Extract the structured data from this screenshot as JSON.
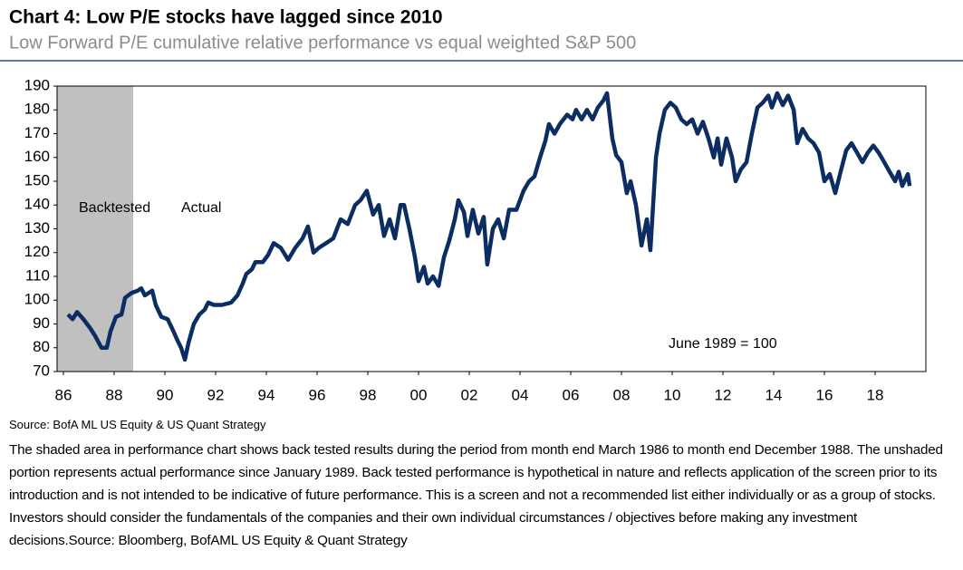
{
  "chart_data": {
    "type": "line",
    "title": "Chart 4: Low P/E stocks have lagged since 2010",
    "subtitle": "Low Forward P/E cumulative relative performance vs equal weighted S&P 500",
    "x": [
      1986.18,
      1986.36,
      1986.54,
      1986.79,
      1987.07,
      1987.25,
      1987.5,
      1987.71,
      1987.86,
      1988.07,
      1988.29,
      1988.43,
      1988.68,
      1988.93,
      1989.07,
      1989.21,
      1989.5,
      1989.64,
      1989.86,
      1990.11,
      1990.29,
      1990.5,
      1990.64,
      1990.79,
      1990.93,
      1991.14,
      1991.36,
      1991.57,
      1991.71,
      1991.93,
      1992.25,
      1992.61,
      1992.86,
      1993.07,
      1993.21,
      1993.43,
      1993.57,
      1993.86,
      1994.07,
      1994.29,
      1994.57,
      1994.86,
      1995.14,
      1995.43,
      1995.64,
      1995.86,
      1996.07,
      1996.36,
      1996.64,
      1996.93,
      1997.21,
      1997.5,
      1997.71,
      1997.96,
      1998.21,
      1998.43,
      1998.64,
      1998.86,
      1999.07,
      1999.29,
      1999.43,
      1999.64,
      1999.86,
      2000,
      2000.21,
      2000.36,
      2000.57,
      2000.79,
      2001,
      2001.21,
      2001.43,
      2001.57,
      2001.79,
      2001.93,
      2002.14,
      2002.36,
      2002.57,
      2002.71,
      2002.93,
      2003.14,
      2003.36,
      2003.57,
      2003.86,
      2004.14,
      2004.36,
      2004.57,
      2004.79,
      2005,
      2005.14,
      2005.36,
      2005.57,
      2005.86,
      2006.07,
      2006.21,
      2006.43,
      2006.64,
      2006.86,
      2007.07,
      2007.29,
      2007.43,
      2007.64,
      2007.79,
      2008,
      2008.21,
      2008.36,
      2008.57,
      2008.79,
      2009,
      2009.14,
      2009.36,
      2009.5,
      2009.71,
      2009.93,
      2010.14,
      2010.36,
      2010.57,
      2010.79,
      2011,
      2011.21,
      2011.43,
      2011.64,
      2011.79,
      2011.93,
      2012.14,
      2012.36,
      2012.5,
      2012.71,
      2012.93,
      2013.14,
      2013.36,
      2013.57,
      2013.79,
      2013.93,
      2014.14,
      2014.36,
      2014.57,
      2014.79,
      2014.93,
      2015.14,
      2015.36,
      2015.57,
      2015.79,
      2016,
      2016.21,
      2016.43,
      2016.64,
      2016.86,
      2017.07,
      2017.29,
      2017.5,
      2017.71,
      2017.93,
      2018.14,
      2018.36,
      2018.57,
      2018.79,
      2018.93,
      2019.07,
      2019.29,
      2019.36
    ],
    "values": [
      94,
      92,
      95,
      92,
      88,
      85,
      80,
      80,
      87,
      93,
      94,
      101,
      103,
      104,
      105,
      102,
      104,
      98,
      93,
      92,
      88,
      83,
      80,
      75,
      82,
      90,
      94,
      96,
      99,
      98,
      98,
      99,
      102,
      107,
      111,
      113,
      116,
      116,
      119,
      124,
      122,
      117,
      122,
      126,
      131,
      120,
      122,
      124,
      126,
      134,
      132,
      140,
      142,
      146,
      136,
      140,
      127,
      134,
      126,
      140,
      140,
      130,
      118,
      108,
      114,
      107,
      110,
      106,
      118,
      125,
      134,
      142,
      137,
      127,
      138,
      128,
      135,
      115,
      130,
      134,
      126,
      138,
      138,
      146,
      150,
      152,
      160,
      167,
      174,
      170,
      174,
      178,
      176,
      180,
      176,
      180,
      176,
      181,
      184,
      187,
      168,
      161,
      158,
      145,
      150,
      140,
      123,
      134,
      121,
      160,
      170,
      180,
      183,
      181,
      176,
      174,
      176,
      170,
      175,
      168,
      160,
      168,
      157,
      168,
      160,
      150,
      155,
      158,
      170,
      181,
      183,
      186,
      181,
      187,
      182,
      186,
      180,
      166,
      172,
      168,
      166,
      162,
      150,
      153,
      145,
      154,
      163,
      166,
      162,
      158,
      162,
      165,
      162,
      158,
      154,
      150,
      154,
      148,
      153,
      148
    ],
    "color": "#0c2d62",
    "xlim": [
      1985.75,
      2020
    ],
    "xticks": [
      {
        "value": 1986,
        "label": "86"
      },
      {
        "value": 1988,
        "label": "88"
      },
      {
        "value": 1990,
        "label": "90"
      },
      {
        "value": 1992,
        "label": "92"
      },
      {
        "value": 1994,
        "label": "94"
      },
      {
        "value": 1996,
        "label": "96"
      },
      {
        "value": 1998,
        "label": "98"
      },
      {
        "value": 2000,
        "label": "00"
      },
      {
        "value": 2002,
        "label": "02"
      },
      {
        "value": 2004,
        "label": "04"
      },
      {
        "value": 2006,
        "label": "06"
      },
      {
        "value": 2008,
        "label": "08"
      },
      {
        "value": 2010,
        "label": "10"
      },
      {
        "value": 2012,
        "label": "12"
      },
      {
        "value": 2014,
        "label": "14"
      },
      {
        "value": 2016,
        "label": "16"
      },
      {
        "value": 2018,
        "label": "18"
      }
    ],
    "ylim": [
      70,
      190
    ],
    "yticks": [
      70,
      80,
      90,
      100,
      110,
      120,
      130,
      140,
      150,
      160,
      170,
      180,
      190
    ],
    "grid": false,
    "shaded_region": {
      "x": [
        1985.75,
        1988.75
      ],
      "color": "#c0c0c0"
    },
    "annotations": [
      "Backtested",
      "Actual",
      "June 1989 = 100"
    ],
    "source": "Source: BofA ML US Equity & US Quant Strategy",
    "note": "The shaded area in performance chart shows back tested results during the period from month end March 1986 to month end December 1988. The unshaded portion represents actual performance since January 1989. Back tested performance is hypothetical in nature and reflects application of the screen prior to its introduction and is not intended to be indicative of future performance. This is a screen and not a recommended list either individually or as a group of stocks. Investors should consider the fundamentals of the companies and their own individual circumstances / objectives before making any investment decisions.Source: Bloomberg, BofAML US Equity & Quant Strategy"
  }
}
